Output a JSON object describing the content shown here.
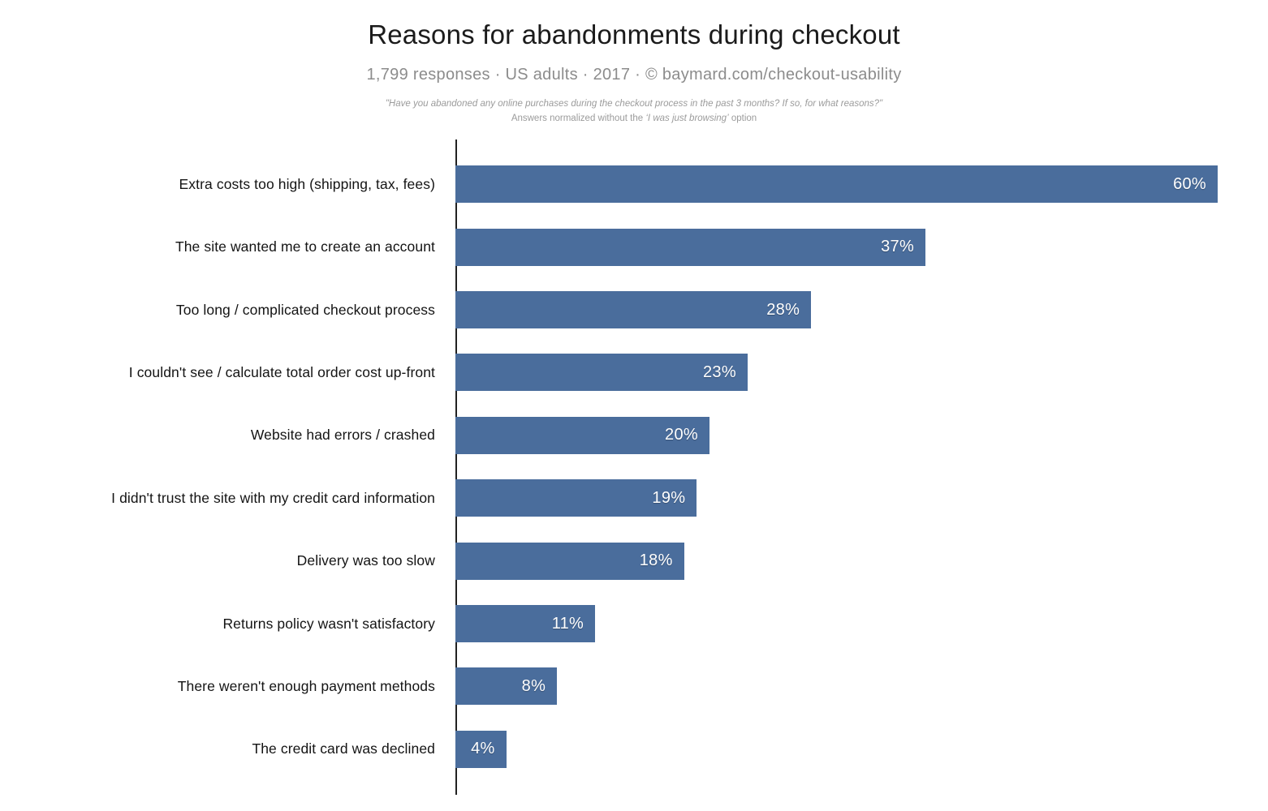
{
  "chart_data": {
    "type": "bar",
    "orientation": "horizontal",
    "title": "Reasons for abandonments during checkout",
    "subtitle": "1,799 responses  ·  US adults  ·  2017  ·  ©  baymard.com/checkout-usability",
    "footnote_quote": "\"Have you abandoned any online purchases during the checkout process in the past 3 months? If so, for what reasons?\"",
    "footnote_prefix": "Answers normalized without the ",
    "footnote_emphasis": "‘I was just browsing’",
    "footnote_suffix": " option",
    "categories": [
      "Extra costs too high (shipping, tax, fees)",
      "The site wanted me to create an account",
      "Too long / complicated checkout process",
      "I couldn't see / calculate total order cost up-front",
      "Website had errors / crashed",
      "I didn't trust the site with my credit card information",
      "Delivery was too slow",
      "Returns policy wasn't satisfactory",
      "There weren't enough payment methods",
      "The credit card was declined"
    ],
    "values": [
      60,
      37,
      28,
      23,
      20,
      19,
      18,
      11,
      8,
      4
    ],
    "value_suffix": "%",
    "xlabel": "",
    "ylabel": "",
    "xlim": [
      0,
      60
    ],
    "grid": false,
    "legend": false,
    "bar_color": "#4a6d9c",
    "value_label_color": "#ffffff",
    "axis_color": "#222222",
    "background_color": "#ffffff"
  }
}
